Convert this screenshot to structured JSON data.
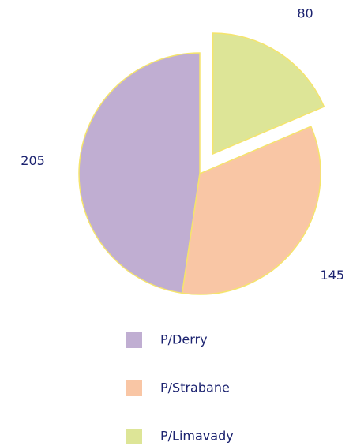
{
  "chart_data": {
    "type": "pie",
    "categories": [
      "P/Derry",
      "P/Strabane",
      "P/Limavady"
    ],
    "values": [
      205,
      145,
      80
    ],
    "colors": [
      "#c0aed2",
      "#f9c6a5",
      "#dde597"
    ],
    "explode": [
      false,
      false,
      true
    ],
    "legend": "bottom"
  }
}
